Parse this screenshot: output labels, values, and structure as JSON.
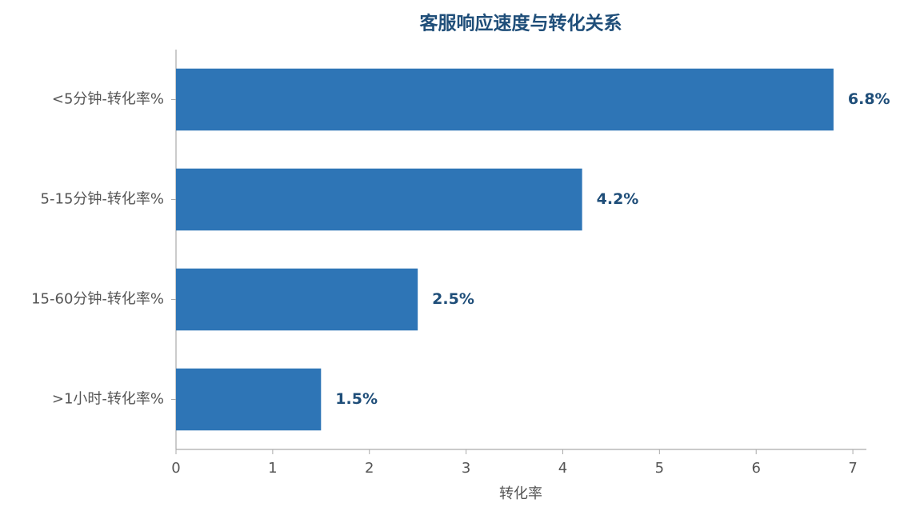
{
  "chart_data": {
    "type": "bar",
    "orientation": "horizontal",
    "title": "客服响应速度与转化关系",
    "categories": [
      "<5分钟-转化率%",
      "5-15分钟-转化率%",
      "15-60分钟-转化率%",
      ">1小时-转化率%"
    ],
    "values": [
      6.8,
      4.2,
      2.5,
      1.5
    ],
    "value_labels": [
      "6.8%",
      "4.2%",
      "2.5%",
      "1.5%"
    ],
    "color": "#2e75b6",
    "xlabel": "转化率",
    "xlim": [
      0,
      7.14
    ],
    "xticks": [
      0,
      1,
      2,
      3,
      4,
      5,
      6,
      7
    ],
    "grid": false
  }
}
